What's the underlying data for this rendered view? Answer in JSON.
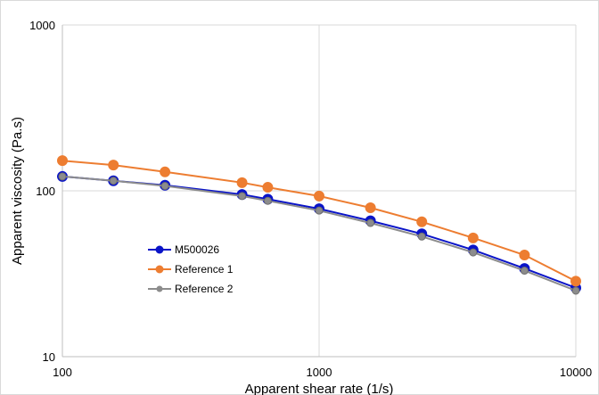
{
  "chart_data": {
    "type": "line",
    "title": "",
    "xlabel": "Apparent shear rate (1/s)",
    "ylabel": "Apparent viscosity (Pa.s)",
    "xscale": "log",
    "yscale": "log",
    "xlim": [
      100,
      10000
    ],
    "ylim": [
      10,
      1000
    ],
    "xticks": [
      "100",
      "1000",
      "10000"
    ],
    "yticks": [
      "10",
      "100",
      "1000"
    ],
    "grid": true,
    "legend_position": "center-left",
    "series": [
      {
        "name": "M500026",
        "color": "#0a14c8",
        "x": [
          100,
          158,
          251,
          501,
          631,
          1000,
          1585,
          2512,
          3981,
          6310,
          10000
        ],
        "y": [
          122,
          115,
          108,
          95,
          89,
          78,
          66,
          55,
          44,
          34,
          26
        ]
      },
      {
        "name": "Reference 1",
        "color": "#ed7d31",
        "x": [
          100,
          158,
          251,
          501,
          631,
          1000,
          1585,
          2512,
          3981,
          6310,
          10000
        ],
        "y": [
          152,
          143,
          130,
          112,
          105,
          93,
          79,
          65,
          52,
          41,
          28.5
        ]
      },
      {
        "name": "Reference 2",
        "color": "#8c8c8c",
        "x": [
          100,
          158,
          251,
          501,
          631,
          1000,
          1585,
          2512,
          3981,
          6310,
          10000
        ],
        "y": [
          122,
          115,
          107,
          93,
          87,
          76,
          64,
          53,
          42.5,
          33,
          25
        ]
      }
    ]
  }
}
